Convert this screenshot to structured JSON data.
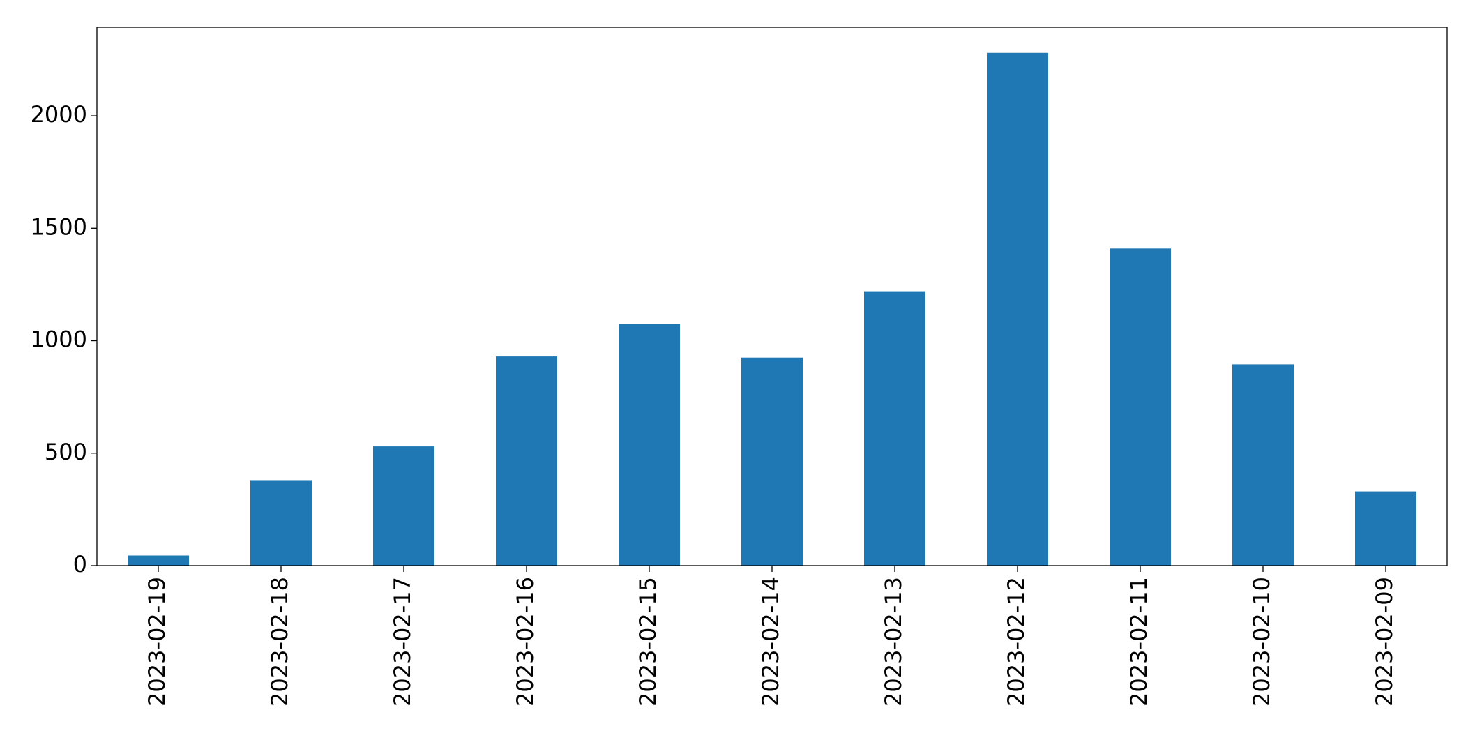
{
  "chart_data": {
    "type": "bar",
    "categories": [
      "2023-02-19",
      "2023-02-18",
      "2023-02-17",
      "2023-02-16",
      "2023-02-15",
      "2023-02-14",
      "2023-02-13",
      "2023-02-12",
      "2023-02-11",
      "2023-02-10",
      "2023-02-09"
    ],
    "values": [
      45,
      380,
      530,
      930,
      1075,
      925,
      1220,
      2280,
      1410,
      895,
      330
    ],
    "color": "#1f77b4",
    "ylim": [
      0,
      2394
    ],
    "yticks": [
      0,
      500,
      1000,
      1500,
      2000
    ],
    "grid": false
  }
}
